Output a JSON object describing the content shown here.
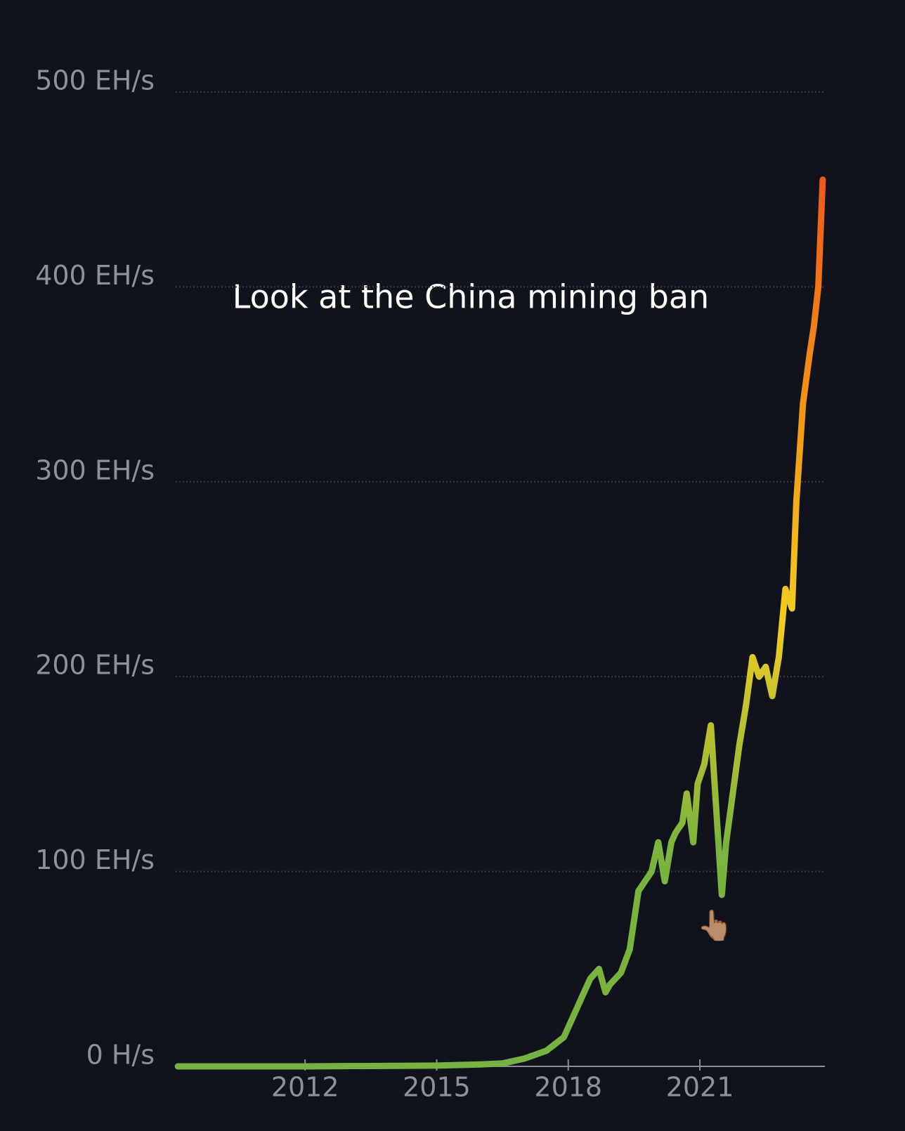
{
  "chart_data": {
    "type": "line",
    "annotation": "Look at the China mining ban",
    "annotation_icon": "👆🏽",
    "x": [
      2009.1,
      2012,
      2015,
      2016,
      2016.5,
      2017,
      2017.5,
      2017.9,
      2018.1,
      2018.3,
      2018.5,
      2018.7,
      2018.85,
      2018.95,
      2019.2,
      2019.4,
      2019.6,
      2019.75,
      2019.9,
      2020.05,
      2020.2,
      2020.35,
      2020.45,
      2020.6,
      2020.7,
      2020.85,
      2020.95,
      2021.1,
      2021.25,
      2021.35,
      2021.5,
      2021.6,
      2021.75,
      2021.9,
      2022.05,
      2022.2,
      2022.35,
      2022.5,
      2022.65,
      2022.8,
      2022.95,
      2023.1,
      2023.2,
      2023.35,
      2023.5,
      2023.6,
      2023.7,
      2023.8
    ],
    "values": [
      0,
      0,
      0.4,
      1,
      1.5,
      4,
      8,
      15,
      25,
      35,
      45,
      50,
      38,
      42,
      48,
      60,
      90,
      95,
      100,
      115,
      95,
      115,
      120,
      125,
      140,
      115,
      145,
      155,
      175,
      140,
      88,
      115,
      140,
      165,
      185,
      210,
      200,
      205,
      190,
      210,
      245,
      235,
      290,
      340,
      365,
      380,
      400,
      455
    ],
    "colors": [
      "#76b241",
      "#7bb43e",
      "#f2cc22",
      "#f39214",
      "#ee5a1c"
    ],
    "xlim": [
      2009.05,
      2023.85
    ],
    "xticks": [
      2012,
      2015,
      2018,
      2021
    ],
    "ylim": [
      0,
      500
    ],
    "yticks": [
      {
        "value": 0,
        "label": "0 H/s"
      },
      {
        "value": 100,
        "label": "100 EH/s"
      },
      {
        "value": 200,
        "label": "200 EH/s"
      },
      {
        "value": 300,
        "label": "300 EH/s"
      },
      {
        "value": 400,
        "label": "400 EH/s"
      },
      {
        "value": 500,
        "label": "500 EH/s"
      }
    ],
    "grid": true
  }
}
